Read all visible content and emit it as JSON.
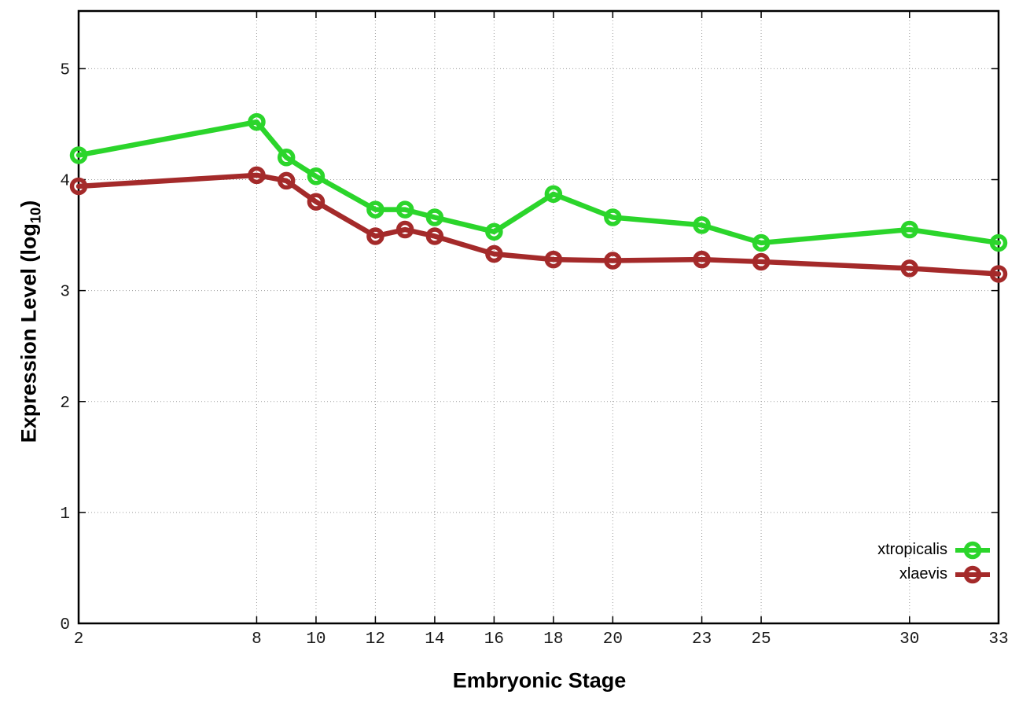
{
  "chart_data": {
    "type": "line",
    "title": "",
    "xlabel": "Embryonic Stage",
    "ylabel": "Expression Level (log10)",
    "ylabel_parts": {
      "main": "Expression Level (log",
      "sub": "10",
      "end": ")"
    },
    "x": [
      2,
      8,
      9,
      10,
      12,
      13,
      14,
      16,
      18,
      20,
      23,
      25,
      30,
      33
    ],
    "xticks": [
      2,
      8,
      10,
      12,
      14,
      16,
      18,
      20,
      23,
      25,
      30,
      33
    ],
    "yticks": [
      0,
      1,
      2,
      3,
      4,
      5
    ],
    "xlim": [
      2,
      33
    ],
    "ylim": [
      0,
      5.52
    ],
    "grid": true,
    "legend_position": "inside-bottom-right",
    "series": [
      {
        "name": "xtropicalis",
        "color": "#2bd52b",
        "marker": "open-circle",
        "values": [
          4.22,
          4.52,
          4.2,
          4.03,
          3.73,
          3.73,
          3.66,
          3.53,
          3.87,
          3.66,
          3.59,
          3.43,
          3.55,
          3.43
        ]
      },
      {
        "name": "xlaevis",
        "color": "#a42a2a",
        "marker": "open-circle",
        "values": [
          3.94,
          4.04,
          3.99,
          3.8,
          3.49,
          3.55,
          3.49,
          3.33,
          3.28,
          3.27,
          3.28,
          3.26,
          3.2,
          3.15
        ]
      }
    ]
  },
  "style": {
    "border_color": "#000000",
    "grid_color": "#9a9a9a",
    "tick_label_color": "#1a1a1a",
    "background": "#ffffff"
  }
}
